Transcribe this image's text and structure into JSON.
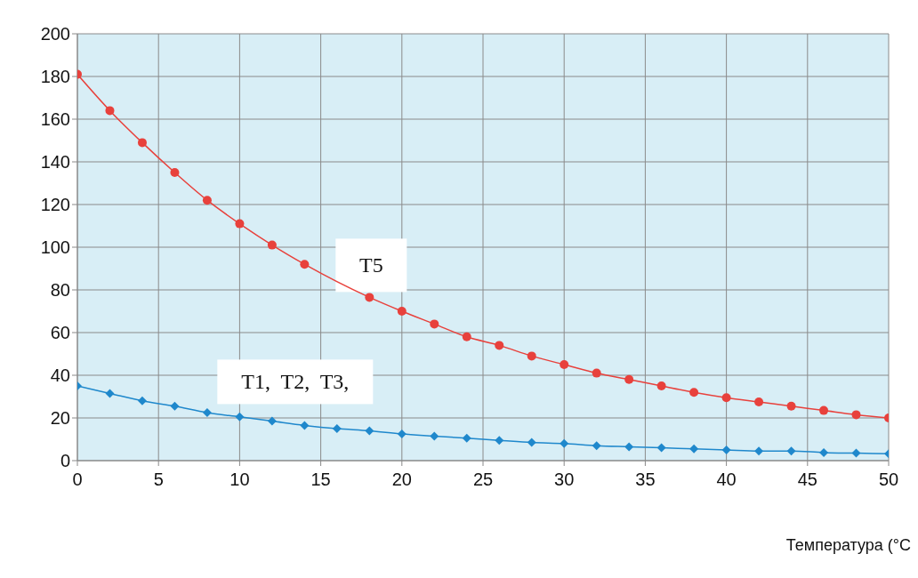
{
  "chart_data": {
    "type": "line",
    "xlabel": "Температура (°C",
    "x": [
      0,
      2,
      4,
      6,
      8,
      10,
      12,
      14,
      16,
      18,
      20,
      22,
      24,
      26,
      28,
      30,
      32,
      34,
      36,
      38,
      40,
      42,
      44,
      46,
      48,
      50
    ],
    "series": [
      {
        "name": "T5",
        "color": "#e8413c",
        "marker": "circle",
        "values": [
          181,
          164,
          149,
          135,
          122,
          111,
          101,
          92,
          null,
          76.5,
          70,
          64,
          58,
          54,
          49,
          45,
          41,
          38,
          35,
          32,
          29.5,
          27.5,
          25.5,
          23.5,
          21.5,
          20
        ]
      },
      {
        "name": "T1,  T2,  T3,",
        "color": "#1f88cc",
        "marker": "diamond",
        "values": [
          35,
          31.5,
          28,
          25.5,
          22.5,
          20.5,
          18.5,
          16.5,
          15,
          14,
          12.5,
          11.5,
          10.5,
          9.5,
          8.5,
          8,
          7,
          6.5,
          6,
          5.5,
          5,
          4.5,
          4.5,
          3.8,
          3.5,
          3.2
        ]
      }
    ],
    "xlim": [
      0,
      50
    ],
    "xticks": [
      0,
      5,
      10,
      15,
      20,
      25,
      30,
      35,
      40,
      45,
      50
    ],
    "ylim": [
      0,
      200
    ],
    "yticks": [
      0,
      20,
      40,
      60,
      80,
      100,
      120,
      140,
      160,
      180,
      200
    ],
    "grid": true
  }
}
